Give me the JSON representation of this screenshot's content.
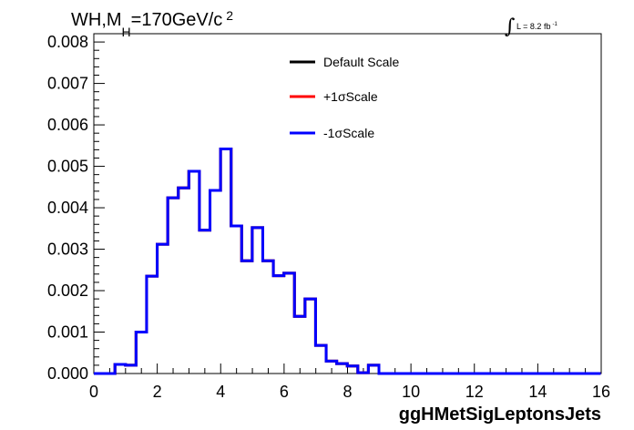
{
  "chart_data": {
    "type": "line",
    "title": {
      "prefix": "WH,M",
      "subscript": "H",
      "middle": "=170GeV/c",
      "superscript": "2"
    },
    "lumi": {
      "text": "L = 8.2 fb",
      "superscript": "-1"
    },
    "xlabel": "ggHMetSigLeptonsJets",
    "ylabel": "",
    "xlim": [
      0,
      16
    ],
    "ylim": [
      0,
      0.0082
    ],
    "x_ticks": [
      "0",
      "2",
      "4",
      "6",
      "8",
      "10",
      "12",
      "14",
      "16"
    ],
    "y_ticks": [
      "0.000",
      "0.001",
      "0.002",
      "0.003",
      "0.004",
      "0.005",
      "0.006",
      "0.007",
      "0.008"
    ],
    "bin_width": 0.333,
    "bin_edges_start": 0,
    "series": [
      {
        "name": "Default Scale",
        "color": "#000000",
        "values": [
          0,
          0,
          0.00022,
          0.0002,
          0.001,
          0.00235,
          0.00312,
          0.00424,
          0.00448,
          0.00488,
          0.00346,
          0.00442,
          0.00542,
          0.00356,
          0.00272,
          0.00352,
          0.00272,
          0.00236,
          0.00242,
          0.00138,
          0.0018,
          0.00068,
          0.0003,
          0.00024,
          0.00018,
          2e-05,
          0.0002,
          0,
          0,
          0,
          0,
          0,
          0,
          0,
          0,
          0,
          0,
          0,
          0,
          0,
          0,
          0,
          0,
          0,
          0,
          0,
          0,
          0
        ]
      },
      {
        "name": "+1σScale",
        "color": "#ff0000",
        "values": [
          0,
          0,
          0.00022,
          0.0002,
          0.001,
          0.00235,
          0.00312,
          0.00424,
          0.00448,
          0.00488,
          0.00346,
          0.00442,
          0.00542,
          0.00356,
          0.00272,
          0.00352,
          0.00272,
          0.00236,
          0.00242,
          0.00138,
          0.0018,
          0.00068,
          0.0003,
          0.00024,
          0.00018,
          2e-05,
          0.0002,
          0,
          0,
          0,
          0,
          0,
          0,
          0,
          0,
          0,
          0,
          0,
          0,
          0,
          0,
          0,
          0,
          0,
          0,
          0,
          0,
          0
        ]
      },
      {
        "name": "-1σScale",
        "color": "#0000ff",
        "values": [
          0,
          0,
          0.00022,
          0.0002,
          0.001,
          0.00235,
          0.00312,
          0.00424,
          0.00448,
          0.00488,
          0.00346,
          0.00442,
          0.00542,
          0.00356,
          0.00272,
          0.00352,
          0.00272,
          0.00236,
          0.00242,
          0.00138,
          0.0018,
          0.00068,
          0.0003,
          0.00024,
          0.00018,
          2e-05,
          0.0002,
          0,
          0,
          0,
          0,
          0,
          0,
          0,
          0,
          0,
          0,
          0,
          0,
          0,
          0,
          0,
          0,
          0,
          0,
          0,
          0,
          0
        ]
      }
    ],
    "legend_position": "top-center",
    "grid": false
  }
}
